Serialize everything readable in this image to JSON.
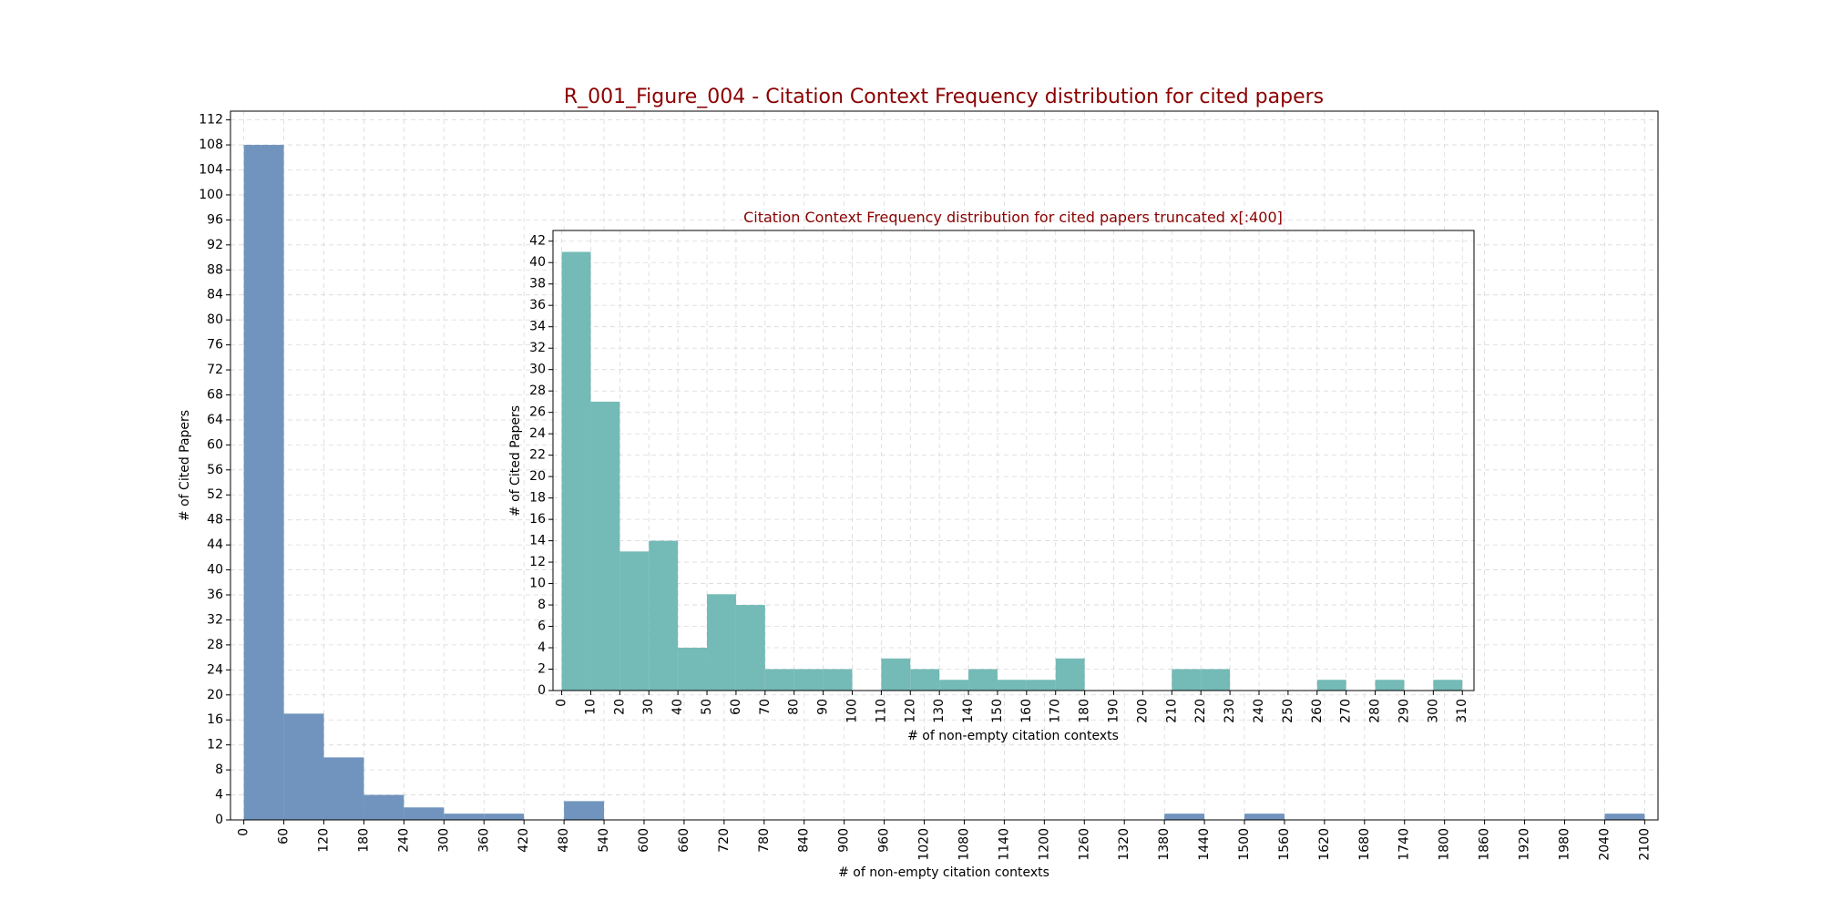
{
  "colors": {
    "main_bar": "#7094bd",
    "inset_bar": "#74bab6",
    "title": "#8b0000",
    "grid": "#d9d9d9",
    "axis": "#000000"
  },
  "chart_data": [
    {
      "type": "bar",
      "title": "R_001_Figure_004 - Citation Context Frequency distribution for cited papers",
      "xlabel": "# of non-empty citation contexts",
      "ylabel": "# of Cited Papers",
      "xlim": [
        -20,
        2120
      ],
      "ylim": [
        0,
        113.4
      ],
      "bin_width": 60,
      "bin_starts": [
        0,
        60,
        120,
        180,
        240,
        300,
        360,
        420,
        480,
        540,
        600,
        660,
        720,
        780,
        840,
        900,
        960,
        1020,
        1080,
        1140,
        1200,
        1260,
        1320,
        1380,
        1440,
        1500,
        1560,
        1620,
        1680,
        1740,
        1800,
        1860,
        1920,
        1980,
        2040
      ],
      "values": [
        108,
        17,
        10,
        4,
        2,
        1,
        1,
        0,
        3,
        0,
        0,
        0,
        0,
        0,
        0,
        0,
        0,
        0,
        0,
        0,
        0,
        0,
        0,
        1,
        0,
        1,
        0,
        0,
        0,
        0,
        0,
        0,
        0,
        0,
        1
      ],
      "xticks": [
        0,
        60,
        120,
        180,
        240,
        300,
        360,
        420,
        480,
        540,
        600,
        660,
        720,
        780,
        840,
        900,
        960,
        1020,
        1080,
        1140,
        1200,
        1260,
        1320,
        1380,
        1440,
        1500,
        1560,
        1620,
        1680,
        1740,
        1800,
        1860,
        1920,
        1980,
        2040,
        2100
      ],
      "yticks": [
        0,
        4,
        8,
        12,
        16,
        20,
        24,
        28,
        32,
        36,
        40,
        44,
        48,
        52,
        56,
        60,
        64,
        68,
        72,
        76,
        80,
        84,
        88,
        92,
        96,
        100,
        104,
        108,
        112
      ],
      "grid": true
    },
    {
      "type": "bar",
      "title": "Citation Context Frequency distribution for cited papers truncated x[:400]",
      "xlabel": "# of non-empty citation contexts",
      "ylabel": "# of Cited Papers",
      "xlim": [
        -3,
        314
      ],
      "ylim": [
        0,
        43
      ],
      "bin_width": 10,
      "bin_starts": [
        0,
        10,
        20,
        30,
        40,
        50,
        60,
        70,
        80,
        90,
        100,
        110,
        120,
        130,
        140,
        150,
        160,
        170,
        180,
        190,
        200,
        210,
        220,
        230,
        240,
        250,
        260,
        270,
        280,
        290,
        300
      ],
      "values": [
        41,
        27,
        13,
        14,
        4,
        9,
        8,
        2,
        2,
        2,
        0,
        3,
        2,
        1,
        2,
        1,
        1,
        3,
        0,
        0,
        0,
        2,
        2,
        0,
        0,
        0,
        1,
        0,
        1,
        0,
        1
      ],
      "xticks": [
        0,
        10,
        20,
        30,
        40,
        50,
        60,
        70,
        80,
        90,
        100,
        110,
        120,
        130,
        140,
        150,
        160,
        170,
        180,
        190,
        200,
        210,
        220,
        230,
        240,
        250,
        260,
        270,
        280,
        290,
        300,
        310
      ],
      "yticks": [
        0,
        2,
        4,
        6,
        8,
        10,
        12,
        14,
        16,
        18,
        20,
        22,
        24,
        26,
        28,
        30,
        32,
        34,
        36,
        38,
        40,
        42
      ],
      "grid": true
    }
  ]
}
